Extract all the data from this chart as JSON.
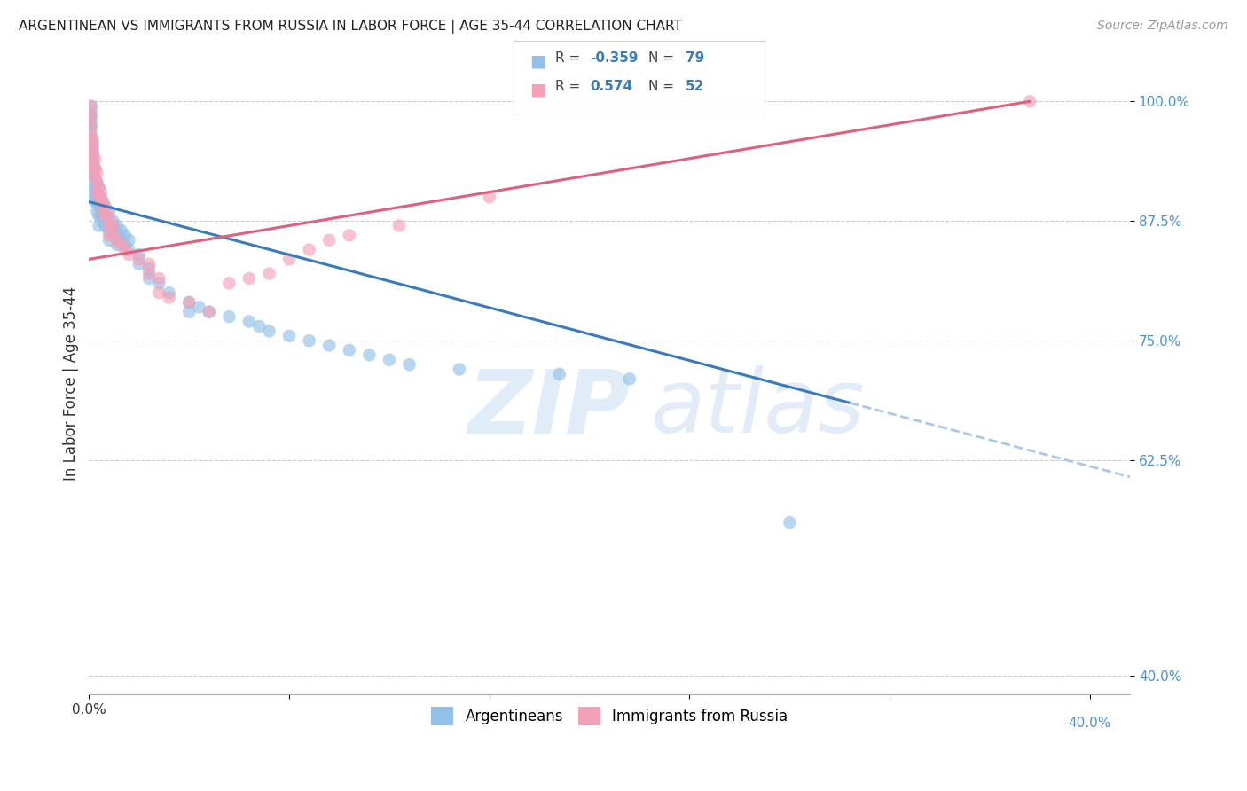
{
  "title": "ARGENTINEAN VS IMMIGRANTS FROM RUSSIA IN LABOR FORCE | AGE 35-44 CORRELATION CHART",
  "source": "Source: ZipAtlas.com",
  "ylabel": "In Labor Force | Age 35-44",
  "xlim": [
    0.0,
    0.52
  ],
  "ylim": [
    0.38,
    1.03
  ],
  "yticks": [
    0.4,
    0.625,
    0.75,
    0.875,
    1.0
  ],
  "yticklabels": [
    "40.0%",
    "62.5%",
    "75.0%",
    "87.5%",
    "100.0%"
  ],
  "blue_color": "#92c0e8",
  "pink_color": "#f4a0b8",
  "blue_line_color": "#3a7bbf",
  "pink_line_color": "#e0607a",
  "dashed_line_color": "#aac8e8",
  "legend_blue_label": "Argentineans",
  "legend_pink_label": "Immigrants from Russia",
  "blue_R": -0.359,
  "blue_N": 79,
  "pink_R": 0.574,
  "pink_N": 52,
  "blue_line_x0": 0.0,
  "blue_line_y0": 0.895,
  "blue_line_x1": 0.38,
  "blue_line_y1": 0.685,
  "pink_line_x0": 0.0,
  "pink_line_y0": 0.835,
  "pink_line_x1": 0.47,
  "pink_line_y1": 1.0,
  "blue_scatter_x": [
    0.001,
    0.001,
    0.001,
    0.001,
    0.001,
    0.001,
    0.001,
    0.001,
    0.001,
    0.002,
    0.002,
    0.002,
    0.002,
    0.002,
    0.002,
    0.003,
    0.003,
    0.003,
    0.003,
    0.003,
    0.004,
    0.004,
    0.004,
    0.004,
    0.005,
    0.005,
    0.005,
    0.005,
    0.005,
    0.006,
    0.006,
    0.006,
    0.007,
    0.007,
    0.007,
    0.008,
    0.008,
    0.008,
    0.01,
    0.01,
    0.01,
    0.01,
    0.012,
    0.012,
    0.014,
    0.014,
    0.014,
    0.016,
    0.016,
    0.018,
    0.018,
    0.02,
    0.02,
    0.025,
    0.025,
    0.03,
    0.03,
    0.035,
    0.04,
    0.05,
    0.05,
    0.055,
    0.06,
    0.07,
    0.08,
    0.085,
    0.09,
    0.1,
    0.11,
    0.12,
    0.13,
    0.14,
    0.15,
    0.16,
    0.185,
    0.235,
    0.27,
    0.35
  ],
  "blue_scatter_y": [
    0.995,
    0.99,
    0.985,
    0.98,
    0.975,
    0.97,
    0.96,
    0.95,
    0.94,
    0.955,
    0.945,
    0.935,
    0.925,
    0.915,
    0.905,
    0.93,
    0.92,
    0.91,
    0.9,
    0.895,
    0.915,
    0.905,
    0.895,
    0.885,
    0.91,
    0.9,
    0.89,
    0.88,
    0.87,
    0.9,
    0.89,
    0.88,
    0.895,
    0.885,
    0.875,
    0.89,
    0.88,
    0.87,
    0.885,
    0.875,
    0.865,
    0.855,
    0.875,
    0.865,
    0.87,
    0.86,
    0.85,
    0.865,
    0.855,
    0.86,
    0.85,
    0.855,
    0.845,
    0.84,
    0.83,
    0.825,
    0.815,
    0.81,
    0.8,
    0.79,
    0.78,
    0.785,
    0.78,
    0.775,
    0.77,
    0.765,
    0.76,
    0.755,
    0.75,
    0.745,
    0.74,
    0.735,
    0.73,
    0.725,
    0.72,
    0.715,
    0.71,
    0.56
  ],
  "pink_scatter_x": [
    0.001,
    0.001,
    0.001,
    0.001,
    0.001,
    0.001,
    0.002,
    0.002,
    0.002,
    0.002,
    0.003,
    0.003,
    0.003,
    0.004,
    0.004,
    0.004,
    0.005,
    0.005,
    0.006,
    0.006,
    0.007,
    0.007,
    0.008,
    0.008,
    0.01,
    0.01,
    0.01,
    0.012,
    0.012,
    0.014,
    0.016,
    0.018,
    0.02,
    0.025,
    0.03,
    0.03,
    0.035,
    0.035,
    0.04,
    0.05,
    0.06,
    0.07,
    0.08,
    0.09,
    0.1,
    0.11,
    0.12,
    0.13,
    0.155,
    0.2,
    0.47
  ],
  "pink_scatter_y": [
    0.995,
    0.985,
    0.975,
    0.965,
    0.955,
    0.945,
    0.96,
    0.95,
    0.94,
    0.93,
    0.94,
    0.93,
    0.92,
    0.925,
    0.915,
    0.905,
    0.91,
    0.9,
    0.905,
    0.895,
    0.895,
    0.885,
    0.89,
    0.88,
    0.88,
    0.87,
    0.86,
    0.87,
    0.86,
    0.855,
    0.85,
    0.845,
    0.84,
    0.835,
    0.83,
    0.82,
    0.815,
    0.8,
    0.795,
    0.79,
    0.78,
    0.81,
    0.815,
    0.82,
    0.835,
    0.845,
    0.855,
    0.86,
    0.87,
    0.9,
    1.0
  ]
}
